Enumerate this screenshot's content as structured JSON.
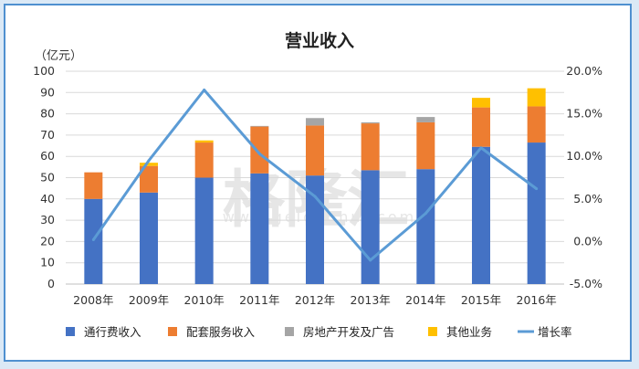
{
  "chart_data": {
    "type": "bar",
    "stacked": true,
    "title": "营业收入",
    "y_unit": "（亿元）",
    "categories": [
      "2008年",
      "2009年",
      "2010年",
      "2011年",
      "2012年",
      "2013年",
      "2014年",
      "2015年",
      "2016年"
    ],
    "ylim": [
      0,
      100
    ],
    "yticks": [
      "0",
      "10",
      "20",
      "30",
      "40",
      "50",
      "60",
      "70",
      "80",
      "90",
      "100"
    ],
    "y2lim": [
      -5,
      20
    ],
    "y2ticks": [
      "-5.0%",
      "0.0%",
      "5.0%",
      "10.0%",
      "15.0%",
      "20.0%"
    ],
    "series": [
      {
        "name": "通行费收入",
        "type": "bar",
        "color": "#4472c4",
        "values": [
          40,
          43,
          50,
          52,
          51,
          53.5,
          54,
          64.5,
          66.5
        ]
      },
      {
        "name": "配套服务收入",
        "type": "bar",
        "color": "#ed7d31",
        "values": [
          12.5,
          12.5,
          16.5,
          22,
          23.5,
          22,
          22,
          18.5,
          17
        ]
      },
      {
        "name": "房地产开发及广告",
        "type": "bar",
        "color": "#a5a5a5",
        "values": [
          0,
          0,
          0,
          0.3,
          3.5,
          0.5,
          2.5,
          0,
          0
        ]
      },
      {
        "name": "其他业务",
        "type": "bar",
        "color": "#ffc000",
        "values": [
          0,
          1.5,
          1,
          0,
          0,
          0,
          0,
          4.5,
          8.5
        ]
      },
      {
        "name": "增长率",
        "type": "line",
        "axis": "right",
        "color": "#5b9bd5",
        "values": [
          0.2,
          9.5,
          17.8,
          10.3,
          5.3,
          -2.2,
          3.3,
          11,
          6.2
        ]
      }
    ],
    "watermark": {
      "main": "格隆汇",
      "sub": "www.gelonghui.com"
    }
  }
}
